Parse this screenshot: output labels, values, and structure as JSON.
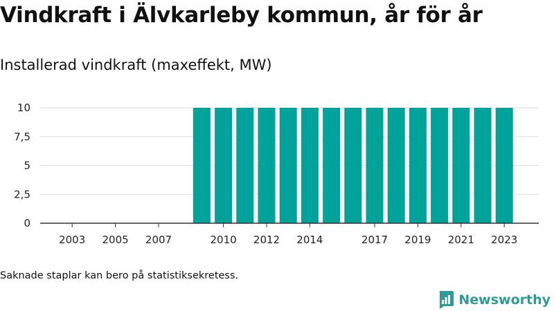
{
  "title": "Vindkraft i Älvkarleby kommun, år för år",
  "subtitle": "Installerad vindkraft (maxeffekt, MW)",
  "footnote": "Saknade staplar kan bero på statistiksekretess.",
  "brand": {
    "name": "Newsworthy",
    "color": "#2e9c95",
    "logo_icon": "bar-chart-speech-bubble-icon"
  },
  "colors": {
    "bar": "#00a39a",
    "grid": "#dddddd",
    "axis": "#333333"
  },
  "chart_data": {
    "type": "bar",
    "title": "Vindkraft i Älvkarleby kommun, år för år",
    "subtitle": "Installerad vindkraft (maxeffekt, MW)",
    "xlabel": "",
    "ylabel": "",
    "categories": [
      "2002",
      "2003",
      "2004",
      "2005",
      "2006",
      "2007",
      "2008",
      "2009",
      "2010",
      "2011",
      "2012",
      "2013",
      "2014",
      "2015",
      "2016",
      "2017",
      "2018",
      "2019",
      "2020",
      "2021",
      "2022",
      "2023"
    ],
    "values": [
      null,
      null,
      null,
      null,
      null,
      null,
      null,
      10,
      10,
      10,
      10,
      10,
      10,
      10,
      10,
      10,
      10,
      10,
      10,
      10,
      10,
      10
    ],
    "x_tick_labels": [
      "2003",
      "2005",
      "2007",
      "2010",
      "2012",
      "2014",
      "2017",
      "2019",
      "2021",
      "2023"
    ],
    "y_ticks": [
      0,
      2.5,
      5,
      7.5,
      10
    ],
    "y_tick_labels": [
      "0",
      "2,5",
      "5",
      "7,5",
      "10"
    ],
    "ylim": [
      0,
      10
    ],
    "grid": true,
    "legend": "none"
  }
}
